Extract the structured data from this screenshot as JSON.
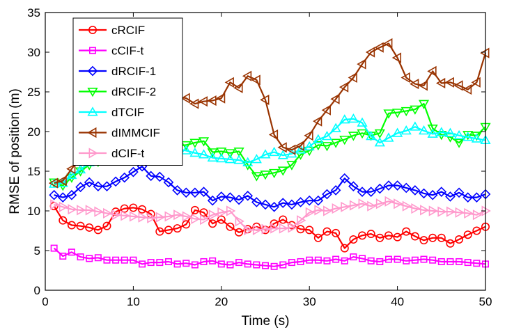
{
  "chart_data": {
    "type": "line",
    "xlabel": "Time (s)",
    "ylabel": "RMSE of position (m)",
    "xlim": [
      0,
      50
    ],
    "ylim": [
      0,
      35
    ],
    "xticks": [
      "0",
      "10",
      "20",
      "30",
      "40",
      "50"
    ],
    "yticks": [
      "0",
      "5",
      "10",
      "15",
      "20",
      "25",
      "30",
      "35"
    ],
    "grid": false,
    "legend_position": "top-left",
    "x": [
      1,
      2,
      3,
      4,
      5,
      6,
      7,
      8,
      9,
      10,
      11,
      12,
      13,
      14,
      15,
      16,
      17,
      18,
      19,
      20,
      21,
      22,
      23,
      24,
      25,
      26,
      27,
      28,
      29,
      30,
      31,
      32,
      33,
      34,
      35,
      36,
      37,
      38,
      39,
      40,
      41,
      42,
      43,
      44,
      45,
      46,
      47,
      48,
      49,
      50
    ],
    "series": [
      {
        "name": "cRCIF",
        "color": "#ff0000",
        "marker": "circle",
        "values": [
          10.6,
          8.8,
          8.2,
          8.1,
          7.9,
          7.6,
          8.1,
          9.9,
          10.3,
          10.4,
          10.2,
          9.6,
          7.4,
          7.6,
          7.8,
          8.3,
          10.1,
          9.8,
          8.4,
          8.9,
          8.0,
          7.3,
          7.7,
          8.0,
          7.6,
          8.4,
          8.9,
          8.2,
          7.7,
          7.6,
          6.6,
          7.4,
          7.2,
          5.3,
          6.4,
          6.9,
          7.1,
          6.6,
          6.9,
          6.7,
          7.4,
          6.8,
          6.3,
          6.6,
          6.6,
          5.9,
          6.4,
          7.0,
          7.5,
          8.0
        ]
      },
      {
        "name": "cCIF-t",
        "color": "#ff00ff",
        "marker": "square",
        "values": [
          5.3,
          4.3,
          4.8,
          4.2,
          4.0,
          4.1,
          3.8,
          3.8,
          3.8,
          3.8,
          3.3,
          3.5,
          3.5,
          3.6,
          3.3,
          3.4,
          3.2,
          3.6,
          3.7,
          3.3,
          3.2,
          3.5,
          3.3,
          3.2,
          3.1,
          3.0,
          3.2,
          3.5,
          3.6,
          3.8,
          3.8,
          3.7,
          3.9,
          3.7,
          4.2,
          4.0,
          3.7,
          3.6,
          3.9,
          3.9,
          3.7,
          3.8,
          3.9,
          3.8,
          3.6,
          3.6,
          3.6,
          3.5,
          3.4,
          3.3
        ]
      },
      {
        "name": "dRCIF-1",
        "color": "#0000ff",
        "marker": "diamond",
        "values": [
          12.0,
          11.7,
          12.0,
          13.0,
          13.6,
          13.1,
          13.1,
          13.7,
          14.2,
          14.9,
          15.6,
          14.4,
          14.3,
          13.6,
          12.6,
          12.3,
          12.3,
          12.4,
          11.3,
          11.8,
          11.7,
          11.4,
          11.9,
          11.1,
          10.8,
          10.5,
          11.0,
          10.8,
          11.1,
          11.3,
          11.3,
          12.1,
          12.6,
          14.1,
          13.1,
          12.4,
          12.4,
          12.8,
          13.2,
          13.2,
          12.9,
          12.6,
          12.2,
          12.0,
          12.4,
          11.8,
          12.3,
          11.7,
          11.7,
          12.1
        ]
      },
      {
        "name": "dRCIF-2",
        "color": "#00ff00",
        "marker": "triangle-down",
        "values": [
          13.6,
          13.2,
          14.2,
          15.0,
          15.8,
          16.2,
          16.4,
          17.0,
          17.5,
          17.8,
          18.2,
          18.4,
          18.5,
          18.7,
          18.2,
          18.3,
          18.6,
          18.8,
          17.4,
          17.5,
          17.3,
          17.5,
          15.8,
          14.4,
          14.6,
          14.8,
          15.1,
          15.8,
          17.1,
          17.6,
          18.3,
          18.2,
          18.6,
          19.0,
          19.5,
          19.8,
          19.5,
          19.8,
          22.3,
          22.4,
          22.6,
          22.8,
          23.5,
          20.4,
          19.6,
          19.3,
          18.6,
          19.6,
          19.5,
          20.6
        ]
      },
      {
        "name": "dTCIF",
        "color": "#00ffff",
        "marker": "triangle-up",
        "values": [
          13.4,
          13.5,
          14.5,
          15.2,
          16.1,
          16.5,
          16.9,
          17.2,
          17.6,
          17.8,
          18.0,
          18.1,
          18.2,
          18.0,
          17.8,
          17.6,
          17.3,
          17.1,
          16.7,
          16.6,
          16.5,
          16.4,
          16.1,
          16.5,
          17.1,
          17.4,
          17.0,
          17.2,
          17.7,
          18.1,
          19.0,
          19.4,
          20.4,
          21.5,
          21.6,
          21.1,
          19.4,
          18.6,
          19.2,
          19.8,
          20.1,
          20.6,
          20.1,
          19.7,
          19.9,
          19.8,
          19.5,
          19.3,
          19.1,
          18.9
        ]
      },
      {
        "name": "dIMMCIF",
        "color": "#993300",
        "marker": "triangle-left",
        "values": [
          13.5,
          13.8,
          15.3,
          16.8,
          18.1,
          19.3,
          20.4,
          21.6,
          22.6,
          23.0,
          23.5,
          24.0,
          24.3,
          24.5,
          24.4,
          24.2,
          23.5,
          23.8,
          23.9,
          24.2,
          26.2,
          25.5,
          27.0,
          26.5,
          24.0,
          19.6,
          18.0,
          17.7,
          18.2,
          19.5,
          21.3,
          22.7,
          24.1,
          25.6,
          26.8,
          28.5,
          30.0,
          30.6,
          31.1,
          29.3,
          26.8,
          26.0,
          25.8,
          27.6,
          26.1,
          26.2,
          25.8,
          25.3,
          26.2,
          29.9
        ]
      },
      {
        "name": "dCIF-t",
        "color": "#ff99cc",
        "marker": "triangle-right",
        "values": [
          10.8,
          10.5,
          10.2,
          10.1,
          10.1,
          9.9,
          9.7,
          9.5,
          9.4,
          9.3,
          9.2,
          9.1,
          9.2,
          9.3,
          9.5,
          9.3,
          9.0,
          8.9,
          9.5,
          9.8,
          10.0,
          8.7,
          7.6,
          7.6,
          7.7,
          7.8,
          7.8,
          7.9,
          8.8,
          9.8,
          10.1,
          10.0,
          10.3,
          10.5,
          10.7,
          10.9,
          10.6,
          10.9,
          11.2,
          10.9,
          10.6,
          10.3,
          10.1,
          10.0,
          9.9,
          9.9,
          9.8,
          9.7,
          9.5,
          10.0
        ]
      }
    ]
  }
}
